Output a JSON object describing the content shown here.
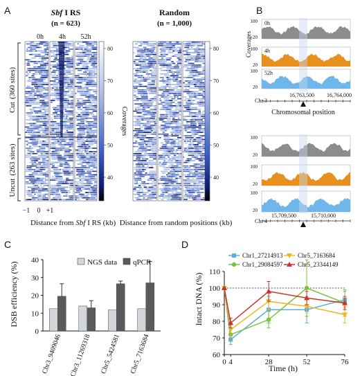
{
  "panel_labels": [
    "A",
    "B",
    "C",
    "D"
  ],
  "panel_a": {
    "left_title_italic": "Sbf",
    "left_title_rest": " I RS",
    "left_n": "(n = 623)",
    "right_title": "Random",
    "right_n": "(n = 1,000)",
    "time_labels": [
      "0h",
      "4h",
      "52h"
    ],
    "cut_label": "Cut",
    "cut_count": "(360 sites)",
    "uncut_label": "Uncut",
    "uncut_count": "(263 sites)",
    "x_ticks": [
      "−1",
      "0",
      "+1"
    ],
    "left_xlabel_pre": "Distance from ",
    "left_xlabel_italic": "Sbf",
    "left_xlabel_post": " I RS (kb)",
    "right_xlabel": "Distance from random positions (kb)",
    "colorbar_ticks": [
      "80",
      "70",
      "60",
      "50",
      "40"
    ],
    "colorbar_label": "Coverages",
    "colors": {
      "high": "#ffffff",
      "mid": "#3a5fc8",
      "low": "#000000"
    }
  },
  "panel_b": {
    "coverage_label": "Coverages",
    "tracks_top": [
      {
        "name": "0h",
        "ymax": "100",
        "ymin": "20",
        "color": "#8c8c8c"
      },
      {
        "name": "4h",
        "ymax": "100",
        "ymin": "20",
        "color": "#e8901e"
      },
      {
        "name": "52h",
        "ymax": "100",
        "ymin": "20",
        "color": "#6fb6ea"
      }
    ],
    "tracks_bottom": [
      {
        "ymax": "100",
        "ymin": "20",
        "color": "#8c8c8c"
      },
      {
        "ymax": "100",
        "ymin": "20",
        "color": "#e8901e"
      },
      {
        "ymax": "100",
        "ymin": "20",
        "color": "#6fb6ea"
      }
    ],
    "top_chr": "Chr 3",
    "top_ticks": [
      "16,763,500",
      "16,764,000"
    ],
    "top_axis_label": "Chromosomal position",
    "bottom_chr": "Chr 4",
    "bottom_ticks": [
      "15,709,500",
      "15,710,000"
    ]
  },
  "chart_data": [
    {
      "type": "bar",
      "panel": "C",
      "categories": [
        "Chr3_9409046",
        "Chr3_11269318",
        "Chr5_5424581",
        "Chr5_7163684"
      ],
      "series": [
        {
          "name": "NGS data",
          "values": [
            12.5,
            14,
            11.8,
            12.5
          ],
          "color": "#d3d6db"
        },
        {
          "name": "qPCR",
          "values": [
            19.5,
            13,
            26.5,
            27
          ],
          "errors": [
            7,
            4,
            1.5,
            12
          ],
          "color": "#5a5a5a"
        }
      ],
      "ylabel": "DSB efficiency (%)",
      "ylim": [
        0,
        40
      ],
      "yticks": [
        0,
        10,
        20,
        30,
        40
      ],
      "legend": "top-right"
    },
    {
      "type": "line",
      "panel": "D",
      "x": [
        0,
        4,
        28,
        52,
        76
      ],
      "series": [
        {
          "name": "Chr1_27214913",
          "values": [
            100,
            69,
            87,
            87,
            93
          ],
          "errors": [
            0,
            3,
            8,
            8,
            5
          ],
          "color": "#5aaee0",
          "marker": "square"
        },
        {
          "name": "Chr1_29084597",
          "values": [
            100,
            72,
            81,
            100,
            91
          ],
          "errors": [
            0,
            4,
            5,
            17,
            8
          ],
          "color": "#7cc23b",
          "marker": "circle"
        },
        {
          "name": "Chr5_7163684",
          "values": [
            100,
            75,
            92,
            89,
            84
          ],
          "errors": [
            0,
            4,
            5,
            4,
            5
          ],
          "color": "#e8b923",
          "marker": "triangle-down"
        },
        {
          "name": "Chr5_23344149",
          "values": [
            100,
            79,
            98,
            94,
            91
          ],
          "errors": [
            0,
            3,
            6,
            4,
            4
          ],
          "color": "#d0302a",
          "marker": "triangle-up"
        }
      ],
      "xlabel": "Time (h)",
      "ylabel": "Intact DNA (%)",
      "xticks": [
        0,
        4,
        28,
        52,
        76
      ],
      "ylim": [
        60,
        110
      ],
      "yticks": [
        60,
        70,
        80,
        90,
        100,
        110
      ],
      "reference_line": 100,
      "legend": "top"
    }
  ]
}
